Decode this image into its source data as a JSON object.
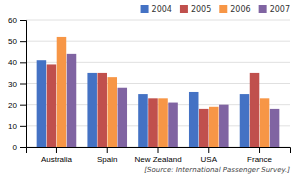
{
  "chart_data": {
    "type": "bar",
    "categories": [
      "Australia",
      "Spain",
      "New Zealand",
      "USA",
      "France"
    ],
    "series": [
      {
        "name": "2004",
        "color": "#4472c4",
        "values": [
          41,
          35,
          25,
          26,
          25
        ]
      },
      {
        "name": "2005",
        "color": "#c0504d",
        "values": [
          39,
          35,
          23,
          18,
          35
        ]
      },
      {
        "name": "2006",
        "color": "#f79646",
        "values": [
          52,
          33,
          23,
          19,
          23
        ]
      },
      {
        "name": "2007",
        "color": "#8064a2",
        "values": [
          44,
          28,
          21,
          20,
          18
        ]
      }
    ],
    "ylim": [
      0,
      60
    ],
    "yticks": [
      0,
      10,
      20,
      30,
      40,
      50,
      60
    ],
    "grid": true,
    "legend": "upper right",
    "annotations": [
      "[Source: International Passenger Survey.]"
    ]
  }
}
